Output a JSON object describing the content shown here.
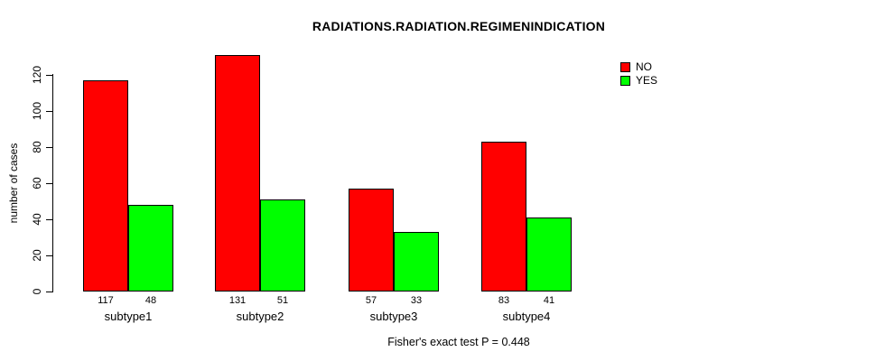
{
  "chart_data": {
    "type": "bar",
    "title": "RADIATIONS.RADIATION.REGIMENINDICATION",
    "ylabel": "number of cases",
    "xlabel": "",
    "categories": [
      "subtype1",
      "subtype2",
      "subtype3",
      "subtype4"
    ],
    "series": [
      {
        "name": "NO",
        "color": "#ff0000",
        "values": [
          117,
          131,
          57,
          83
        ]
      },
      {
        "name": "YES",
        "color": "#00ff00",
        "values": [
          48,
          51,
          33,
          41
        ]
      }
    ],
    "bar_value_labels": {
      "NO": [
        "117",
        "131",
        "57",
        "83"
      ],
      "YES": [
        "48",
        "51",
        "33",
        "41"
      ]
    },
    "yticks": [
      0,
      20,
      40,
      60,
      80,
      100,
      120
    ],
    "ylim": [
      0,
      120
    ],
    "grid": false,
    "legend_position": "top-right",
    "footnote": "Fisher's exact test P = 0.448"
  }
}
